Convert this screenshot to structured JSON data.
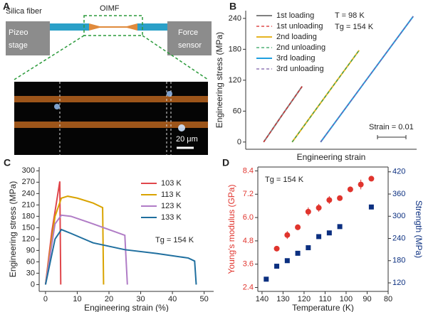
{
  "panel_a": {
    "label": "A",
    "silica_fiber": "Silica fiber",
    "oimf": "OIMF",
    "left_stage": [
      "Pizeo",
      "stage"
    ],
    "right_sensor": [
      "Force",
      "sensor"
    ],
    "scale_bar": "20 μm"
  },
  "chart_data": [
    {
      "type": "line",
      "panel": "B",
      "xlabel": "Engineering strain",
      "ylabel": "Engineering stress (MPa)",
      "xlim": [
        0,
        0.06
      ],
      "ylim": [
        -14,
        255
      ],
      "yticks": [
        0,
        60,
        120,
        180,
        240
      ],
      "annotations": [
        "T = 98 K",
        "Tg = 154 K"
      ],
      "scale_bar": {
        "label": "Strain = 0.01",
        "value": 0.01
      },
      "series": [
        {
          "name": "1st loading",
          "color": "#808080",
          "dash": false,
          "x": [
            0.0063,
            0.0125,
            0.0198
          ],
          "values": [
            0,
            50,
            108
          ]
        },
        {
          "name": "1st unloading",
          "color": "#d62728",
          "dash": true,
          "x": [
            0.0063,
            0.0125,
            0.0198
          ],
          "values": [
            0,
            50,
            108
          ]
        },
        {
          "name": "2nd loading",
          "color": "#e6b422",
          "dash": false,
          "x": [
            0.0163,
            0.0275,
            0.0398
          ],
          "values": [
            0,
            85,
            178
          ]
        },
        {
          "name": "2nd unloading",
          "color": "#2ca05a",
          "dash": true,
          "x": [
            0.0163,
            0.0275,
            0.0398
          ],
          "values": [
            0,
            85,
            178
          ]
        },
        {
          "name": "3rd loading",
          "color": "#1f9fe0",
          "dash": false,
          "x": [
            0.0263,
            0.042,
            0.0588
          ],
          "values": [
            0,
            118,
            244
          ]
        },
        {
          "name": "3rd unloading",
          "color": "#7b5ea7",
          "dash": true,
          "x": [
            0.0263,
            0.042,
            0.0588
          ],
          "values": [
            0,
            118,
            244
          ]
        }
      ]
    },
    {
      "type": "line",
      "panel": "C",
      "xlabel": "Engineering strain (%)",
      "ylabel": "Engineering stress (MPa)",
      "xlim": [
        -2,
        53
      ],
      "xticks": [
        0,
        10,
        20,
        30,
        40,
        50
      ],
      "ylim": [
        -18,
        310
      ],
      "yticks": [
        0,
        30,
        60,
        90,
        120,
        150,
        180,
        210,
        240,
        270,
        300
      ],
      "annotations": [
        "Tg = 154 K"
      ],
      "series": [
        {
          "name": "103 K",
          "color": "#e0464b",
          "dash": false,
          "x": [
            0,
            2,
            4.5,
            4.8
          ],
          "values": [
            0,
            140,
            272,
            0
          ]
        },
        {
          "name": "113 K",
          "color": "#d9a300",
          "dash": false,
          "x": [
            0,
            3,
            5,
            7,
            10,
            15,
            18,
            18.3
          ],
          "values": [
            0,
            180,
            228,
            233,
            228,
            215,
            203,
            0
          ]
        },
        {
          "name": "123 K",
          "color": "#b07cc6",
          "dash": false,
          "x": [
            0,
            3,
            5,
            8,
            15,
            20,
            25,
            25.8
          ],
          "values": [
            0,
            160,
            183,
            180,
            160,
            145,
            130,
            0
          ]
        },
        {
          "name": "133 K",
          "color": "#1f6f9f",
          "dash": false,
          "x": [
            0,
            3,
            5,
            8,
            15,
            25,
            35,
            45,
            47,
            47.5
          ],
          "values": [
            0,
            120,
            145,
            135,
            110,
            92,
            82,
            70,
            62,
            0
          ]
        }
      ]
    },
    {
      "type": "scatter",
      "panel": "D",
      "xlabel": "Temperature (K)",
      "ylabel": "Young's modulus (GPa)",
      "y2label": "Strength (MPa)",
      "xlim": [
        142,
        80
      ],
      "xticks": [
        140,
        130,
        120,
        110,
        100,
        90,
        80
      ],
      "ylim": [
        2.2,
        8.6
      ],
      "yticks": [
        2.4,
        3.6,
        4.8,
        {
          "value": 6,
          "label": "6.0"
        },
        7.2,
        8.4
      ],
      "y2lim": [
        97,
        433
      ],
      "y2ticks": [
        120,
        180,
        240,
        300,
        360,
        420
      ],
      "annotations": [
        "Tg = 154 K"
      ],
      "series": [
        {
          "color": "#e0342d",
          "marker": "circle",
          "x": [
            133,
            128,
            123,
            118,
            113,
            108,
            103,
            98,
            93,
            88
          ],
          "values": [
            4.4,
            5.1,
            5.5,
            6.3,
            6.5,
            6.9,
            7.0,
            7.45,
            7.7,
            8.0
          ],
          "errors": [
            0.12,
            0.2,
            0.15,
            0.22,
            0.2,
            0.2,
            0.1,
            0.15,
            0.25,
            0.1
          ]
        },
        {
          "color": "#0b2f80",
          "marker": "square",
          "axis": "y2",
          "x": [
            138,
            133,
            128,
            123,
            118,
            113,
            108,
            103,
            88
          ],
          "values": [
            130,
            165,
            180,
            200,
            215,
            245,
            255,
            272,
            325
          ]
        }
      ]
    }
  ]
}
